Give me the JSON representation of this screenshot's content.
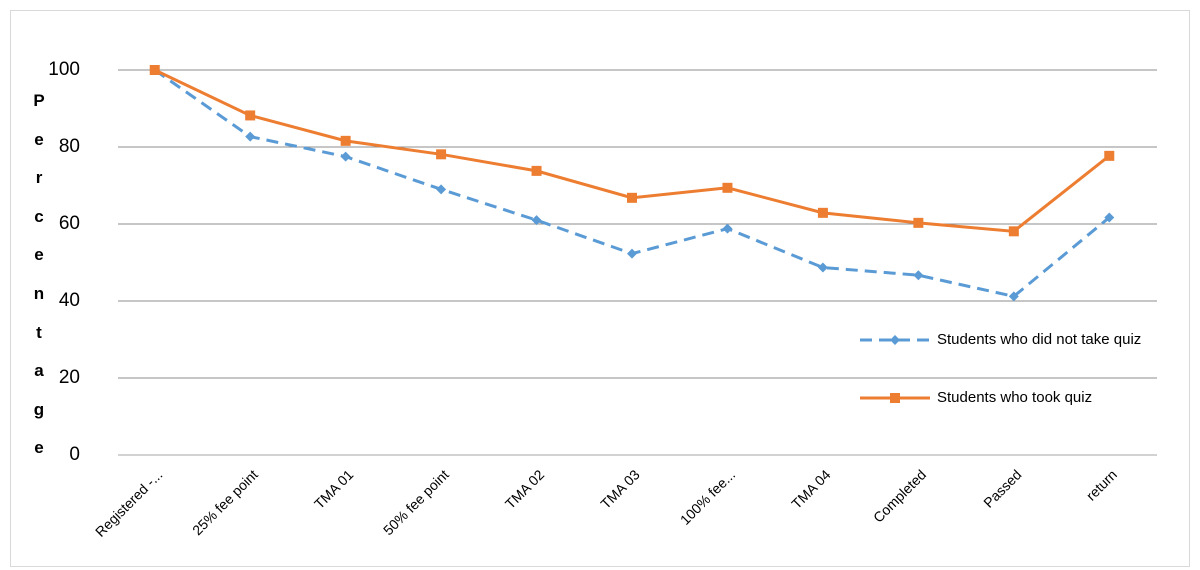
{
  "chart_data": {
    "type": "line",
    "y_label": "Percentage",
    "categories": [
      "Registered -...",
      "25% fee point",
      "TMA 01",
      "50% fee point",
      "TMA 02",
      "TMA 03",
      "100% fee...",
      "TMA 04",
      "Completed",
      "Passed",
      "return"
    ],
    "series": [
      {
        "name": "Students who did not take quiz",
        "color": "#5b9bd5",
        "dashed": true,
        "marker": "diamond",
        "values": [
          100,
          82.7,
          77.5,
          69,
          61,
          52.3,
          58.8,
          48.7,
          46.7,
          41.2,
          61.7
        ]
      },
      {
        "name": "Students who took quiz",
        "color": "#ed7d31",
        "dashed": false,
        "marker": "square",
        "values": [
          100,
          88.2,
          81.6,
          78.1,
          73.8,
          66.8,
          69.4,
          62.9,
          60.3,
          58.1,
          77.7
        ]
      }
    ],
    "ylim": [
      0,
      100
    ],
    "yticks": [
      0,
      20,
      40,
      60,
      80,
      100
    ],
    "grid": true,
    "legend": "right"
  }
}
